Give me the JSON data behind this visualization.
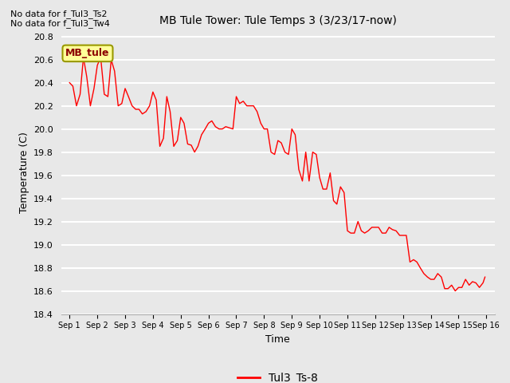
{
  "title": "MB Tule Tower: Tule Temps 3 (3/23/17-now)",
  "xlabel": "Time",
  "ylabel": "Temperature (C)",
  "no_data_text": [
    "No data for f_Tul3_Ts2",
    "No data for f_Tul3_Tw4"
  ],
  "legend_label": "Tul3_Ts-8",
  "legend_label_box": "MB_tule",
  "line_color": "#ff0000",
  "ylim": [
    18.4,
    20.85
  ],
  "yticks": [
    18.4,
    18.6,
    18.8,
    19.0,
    19.2,
    19.4,
    19.6,
    19.8,
    20.0,
    20.2,
    20.4,
    20.6,
    20.8
  ],
  "xtick_labels": [
    "Sep 1",
    "Sep 2",
    "Sep 3",
    "Sep 4",
    "Sep 5",
    "Sep 6",
    "Sep 7",
    "Sep 8",
    "Sep 9",
    "Sep 10",
    "Sep 11",
    "Sep 12",
    "Sep 13",
    "Sep 14",
    "Sep 15",
    "Sep 16"
  ],
  "background_color": "#e8e8e8",
  "plot_bg_color": "#e8e8e8",
  "x": [
    0,
    0.12,
    0.25,
    0.38,
    0.5,
    0.62,
    0.75,
    0.88,
    1.0,
    1.12,
    1.25,
    1.38,
    1.5,
    1.62,
    1.75,
    1.88,
    2.0,
    2.12,
    2.25,
    2.38,
    2.5,
    2.62,
    2.75,
    2.88,
    3.0,
    3.12,
    3.25,
    3.38,
    3.5,
    3.62,
    3.75,
    3.88,
    4.0,
    4.12,
    4.25,
    4.38,
    4.5,
    4.62,
    4.75,
    4.88,
    5.0,
    5.12,
    5.25,
    5.38,
    5.5,
    5.62,
    5.75,
    5.88,
    6.0,
    6.12,
    6.25,
    6.38,
    6.5,
    6.62,
    6.75,
    6.88,
    7.0,
    7.12,
    7.25,
    7.38,
    7.5,
    7.62,
    7.75,
    7.88,
    8.0,
    8.12,
    8.25,
    8.38,
    8.5,
    8.62,
    8.75,
    8.88,
    9.0,
    9.12,
    9.25,
    9.38,
    9.5,
    9.62,
    9.75,
    9.88,
    10.0,
    10.12,
    10.25,
    10.38,
    10.5,
    10.62,
    10.75,
    10.88,
    11.0,
    11.12,
    11.25,
    11.38,
    11.5,
    11.62,
    11.75,
    11.88,
    12.0,
    12.12,
    12.25,
    12.38,
    12.5,
    12.62,
    12.75,
    12.88,
    13.0,
    13.12,
    13.25,
    13.38,
    13.5,
    13.62,
    13.75,
    13.88,
    14.0,
    14.12,
    14.25,
    14.38,
    14.5,
    14.62,
    14.75,
    14.88,
    14.95
  ],
  "y": [
    20.4,
    20.37,
    20.2,
    20.3,
    20.62,
    20.45,
    20.2,
    20.35,
    20.55,
    20.62,
    20.3,
    20.28,
    20.6,
    20.5,
    20.2,
    20.22,
    20.35,
    20.28,
    20.2,
    20.17,
    20.17,
    20.13,
    20.15,
    20.2,
    20.32,
    20.25,
    19.85,
    19.92,
    20.28,
    20.15,
    19.85,
    19.9,
    20.1,
    20.05,
    19.87,
    19.86,
    19.8,
    19.85,
    19.95,
    20.0,
    20.05,
    20.07,
    20.02,
    20.0,
    20.0,
    20.02,
    20.01,
    20.0,
    20.28,
    20.22,
    20.24,
    20.2,
    20.2,
    20.2,
    20.15,
    20.05,
    20.0,
    20.0,
    19.8,
    19.78,
    19.9,
    19.88,
    19.8,
    19.78,
    20.0,
    19.95,
    19.65,
    19.55,
    19.8,
    19.55,
    19.8,
    19.78,
    19.58,
    19.48,
    19.48,
    19.62,
    19.38,
    19.35,
    19.5,
    19.45,
    19.12,
    19.1,
    19.1,
    19.2,
    19.12,
    19.1,
    19.12,
    19.15,
    19.15,
    19.15,
    19.1,
    19.1,
    19.15,
    19.13,
    19.12,
    19.08,
    19.08,
    19.08,
    18.85,
    18.87,
    18.85,
    18.8,
    18.75,
    18.72,
    18.7,
    18.7,
    18.75,
    18.72,
    18.62,
    18.62,
    18.65,
    18.6,
    18.63,
    18.63,
    18.7,
    18.65,
    18.68,
    18.67,
    18.63,
    18.67,
    18.72
  ]
}
